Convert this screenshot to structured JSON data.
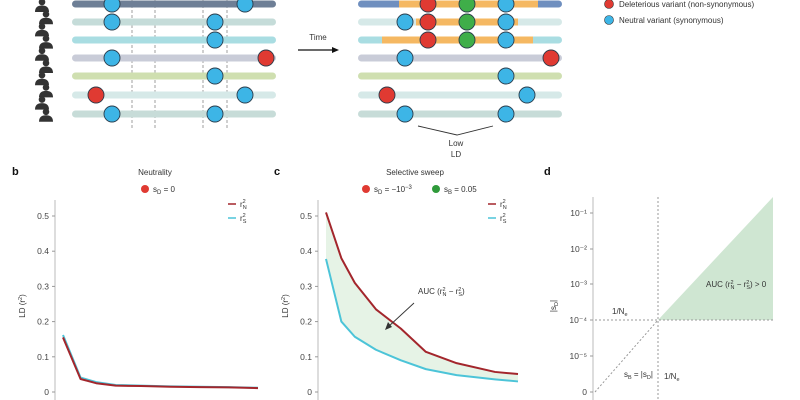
{
  "panel_a": {
    "time_label": "Time",
    "low_ld": [
      "Low",
      "LD"
    ],
    "legend": [
      {
        "label": "Deleterious variant (non-synonymous)",
        "color": "#e03a32"
      },
      {
        "label": "Neutral variant (synonymous)",
        "color": "#3db5e6"
      }
    ],
    "colors": {
      "deleterious": "#e03a32",
      "neutral": "#3db5e6",
      "beneficial": "#3fae49",
      "sweep_haplotype": "#f5b862"
    }
  },
  "chart_data": [
    {
      "panel": "b",
      "type": "line",
      "title": "Neutrality",
      "legend_marker": {
        "label": {
          "base": "s",
          "sub": "D",
          "rest": " = 0"
        },
        "color": "#e03a32"
      },
      "ylabel": {
        "base": "LD (r",
        "sup": "2",
        "end": ")"
      },
      "ylim": [
        0,
        0.55
      ],
      "yticks": [
        "0",
        "0.1",
        "0.2",
        "0.3",
        "0.4",
        "0.5"
      ],
      "ytick_values": [
        0,
        0.1,
        0.2,
        0.3,
        0.4,
        0.5
      ],
      "x": [
        0,
        9,
        17,
        27,
        40,
        55,
        70,
        85,
        100
      ],
      "series": [
        {
          "name": {
            "base": "r",
            "sup": "2",
            "sub": "N"
          },
          "color": "#a3262c",
          "values": [
            0.155,
            0.037,
            0.025,
            0.018,
            0.017,
            0.015,
            0.014,
            0.013,
            0.011
          ]
        },
        {
          "name": {
            "base": "r",
            "sup": "2",
            "sub": "S"
          },
          "color": "#4cc4d8",
          "values": [
            0.162,
            0.041,
            0.028,
            0.02,
            0.018,
            0.016,
            0.015,
            0.014,
            0.012
          ]
        }
      ]
    },
    {
      "panel": "c",
      "type": "line",
      "title": "Selective sweep",
      "legend_markers": [
        {
          "label": {
            "base": "s",
            "sub": "D",
            "rest": " = −10",
            "sup": "−3"
          },
          "color": "#e03a32"
        },
        {
          "label": {
            "base": "s",
            "sub": "B",
            "rest": " = 0.05"
          },
          "color": "#2f9a3a"
        }
      ],
      "ylabel": {
        "base": "LD (r",
        "sup": "2",
        "end": ")"
      },
      "ylim": [
        0,
        0.55
      ],
      "yticks": [
        "0",
        "0.1",
        "0.2",
        "0.3",
        "0.4",
        "0.5"
      ],
      "ytick_values": [
        0,
        0.1,
        0.2,
        0.3,
        0.4,
        0.5
      ],
      "x": [
        0,
        8,
        15,
        26,
        39,
        52,
        68,
        88,
        100
      ],
      "series": [
        {
          "name": {
            "base": "r",
            "sup": "2",
            "sub": "N"
          },
          "color": "#a3262c",
          "values": [
            0.51,
            0.38,
            0.31,
            0.235,
            0.18,
            0.114,
            0.082,
            0.057,
            0.051
          ]
        },
        {
          "name": {
            "base": "r",
            "sup": "2",
            "sub": "S"
          },
          "color": "#4cc4d8",
          "values": [
            0.378,
            0.2,
            0.157,
            0.12,
            0.09,
            0.065,
            0.048,
            0.036,
            0.03
          ]
        }
      ],
      "fill_between_color": "#e6f3e6",
      "annotation": {
        "text": "AUC (r",
        "sup1": "2",
        "sub1": "N",
        "mid": " − r",
        "sup2": "2",
        "sub2": "S",
        "end": ")"
      }
    },
    {
      "panel": "d",
      "type": "area",
      "ylabel": {
        "text": "|s",
        "sub": "D",
        "end": "|"
      },
      "yscale": "log",
      "yticks": [
        "0",
        "10⁻⁵",
        "10⁻⁴",
        "10⁻³",
        "10⁻²",
        "10⁻¹"
      ],
      "threshold_label": {
        "base": "1/N",
        "sub": "e"
      },
      "diagonal_label": {
        "base": "s",
        "sub": "B",
        "mid": " = |s",
        "sub2": "D",
        "end": "|"
      },
      "region_label": {
        "text": "AUC (r",
        "sup1": "2",
        "sub1": "N",
        "mid": " − r",
        "sup2": "2",
        "sub2": "S",
        "end": ") > 0"
      },
      "region_color": "#cfe6d2"
    }
  ],
  "panel_labels": {
    "b": "b",
    "c": "c",
    "d": "d"
  }
}
